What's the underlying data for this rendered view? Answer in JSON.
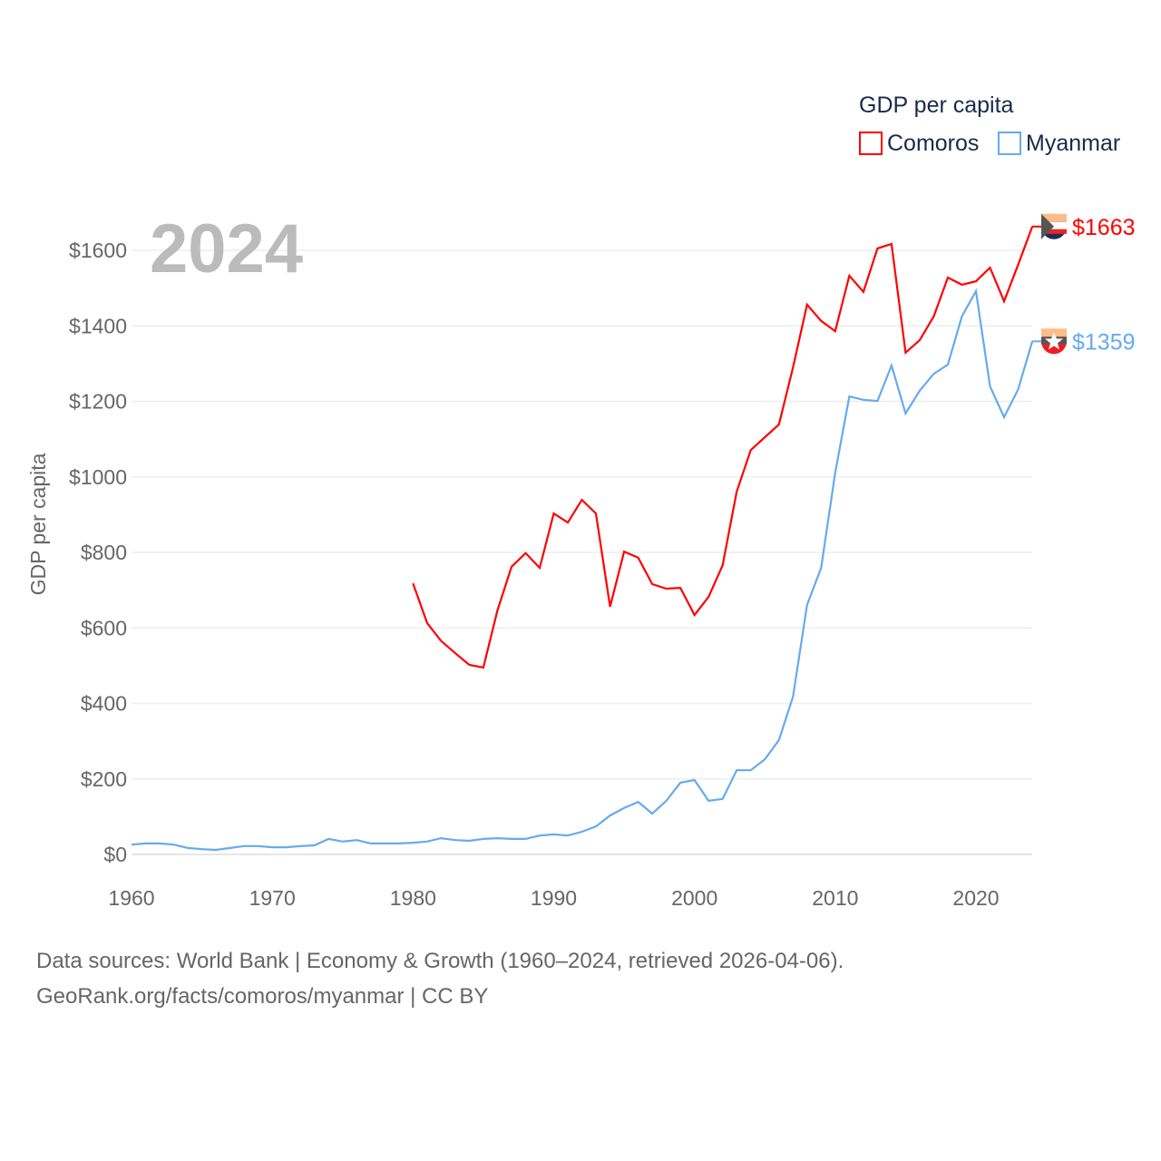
{
  "chart_data": {
    "type": "line",
    "title": "GDP per capita",
    "year_label": "2024",
    "xlabel": "",
    "ylabel": "GDP per capita",
    "xlim": [
      1960,
      2024
    ],
    "ylim": [
      0,
      1700
    ],
    "x_ticks": [
      1960,
      1970,
      1980,
      1990,
      2000,
      2010,
      2020
    ],
    "y_ticks": [
      0,
      200,
      400,
      600,
      800,
      1000,
      1200,
      1400,
      1600
    ],
    "y_tick_labels": [
      "$0",
      "$200",
      "$400",
      "$600",
      "$800",
      "$1000",
      "$1200",
      "$1400",
      "$1600"
    ],
    "grid": true,
    "legend": {
      "title": "GDP per capita",
      "placement": "top-right"
    },
    "series": [
      {
        "name": "Comoros",
        "color": "#ff0000",
        "end_label": "$1663",
        "start_year": 1980,
        "values": [
          718,
          613,
          565,
          533,
          502,
          495,
          646,
          762,
          798,
          759,
          903,
          879,
          939,
          903,
          656,
          802,
          786,
          716,
          704,
          706,
          634,
          682,
          766,
          961,
          1071,
          1105,
          1139,
          1290,
          1456,
          1413,
          1386,
          1533,
          1490,
          1605,
          1617,
          1329,
          1362,
          1425,
          1528,
          1509,
          1518,
          1554,
          1465,
          1562,
          1663
        ]
      },
      {
        "name": "Myanmar",
        "color": "#66aaee",
        "end_label": "$1359",
        "start_year": 1960,
        "values": [
          26,
          29,
          29,
          26,
          17,
          14,
          12,
          17,
          22,
          22,
          19,
          19,
          22,
          24,
          41,
          34,
          38,
          29,
          29,
          29,
          31,
          34,
          43,
          38,
          36,
          41,
          43,
          41,
          41,
          50,
          53,
          50,
          60,
          74,
          103,
          123,
          139,
          108,
          142,
          190,
          197,
          142,
          147,
          223,
          223,
          252,
          303,
          418,
          661,
          759,
          1011,
          1213,
          1204,
          1201,
          1295,
          1168,
          1228,
          1273,
          1297,
          1425,
          1492,
          1240,
          1158,
          1232,
          1359
        ]
      }
    ]
  },
  "footer": {
    "line1": "Data sources: World Bank | Economy & Growth (1960–2024, retrieved 2026-04-06).",
    "line2": "GeoRank.org/facts/comoros/myanmar | CC BY"
  }
}
